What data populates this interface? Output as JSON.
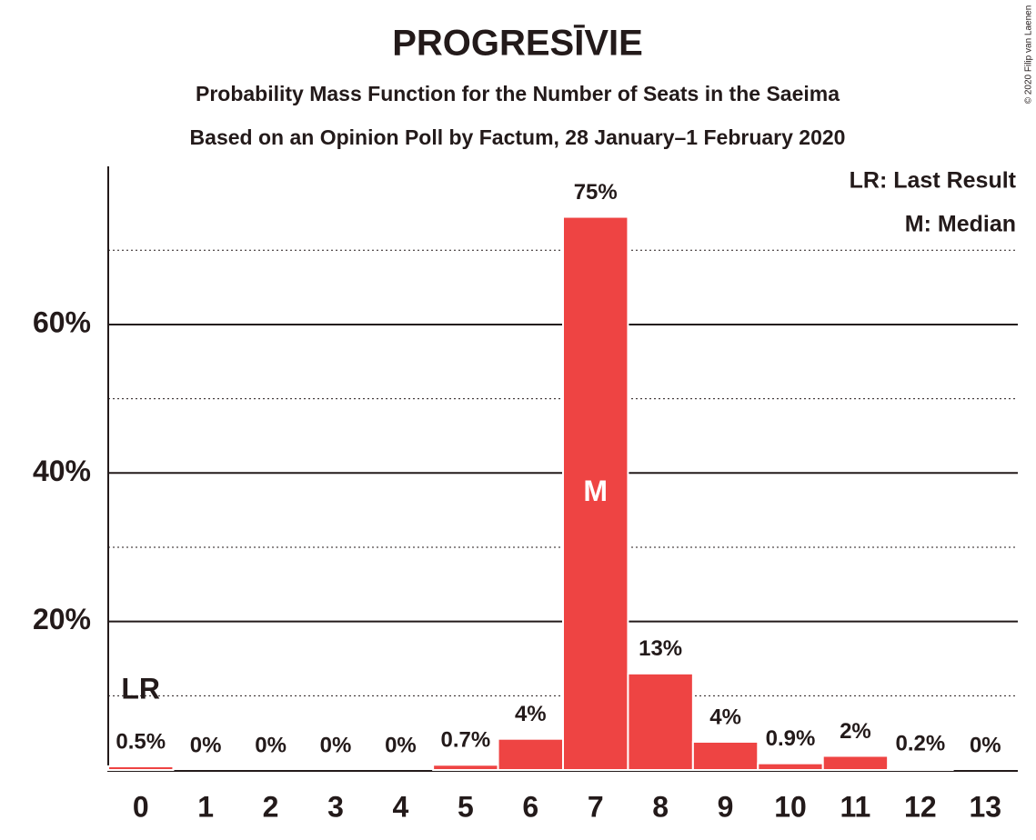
{
  "chart_data": {
    "type": "bar",
    "title": "PROGRESĪVIE",
    "subtitles": [
      "Probability Mass Function for the Number of Seats in the Saeima",
      "Based on an Opinion Poll by Factum, 28 January–1 February 2020"
    ],
    "categories": [
      "0",
      "1",
      "2",
      "3",
      "4",
      "5",
      "6",
      "7",
      "8",
      "9",
      "10",
      "11",
      "12",
      "13"
    ],
    "values": [
      0.5,
      0,
      0,
      0,
      0,
      0.7,
      4.2,
      74.5,
      13,
      3.8,
      0.9,
      1.9,
      0.2,
      0
    ],
    "value_labels": [
      "0.5%",
      "0%",
      "0%",
      "0%",
      "0%",
      "0.7%",
      "4%",
      "75%",
      "13%",
      "4%",
      "0.9%",
      "2%",
      "0.2%",
      "0%"
    ],
    "color": "#ee4443",
    "ylim": [
      0,
      81.3
    ],
    "yticks": [
      {
        "value": 20,
        "label": "20%"
      },
      {
        "value": 40,
        "label": "40%"
      },
      {
        "value": 60,
        "label": "60%"
      }
    ],
    "minor_yticks": [
      10,
      30,
      50,
      70
    ],
    "grid": true,
    "annotations": [
      {
        "text": "LR",
        "category": "0"
      },
      {
        "text": "M",
        "category": "7"
      }
    ],
    "legend": [
      "LR: Last Result",
      "M: Median"
    ],
    "copyright": "© 2020 Filip van Laenen"
  }
}
